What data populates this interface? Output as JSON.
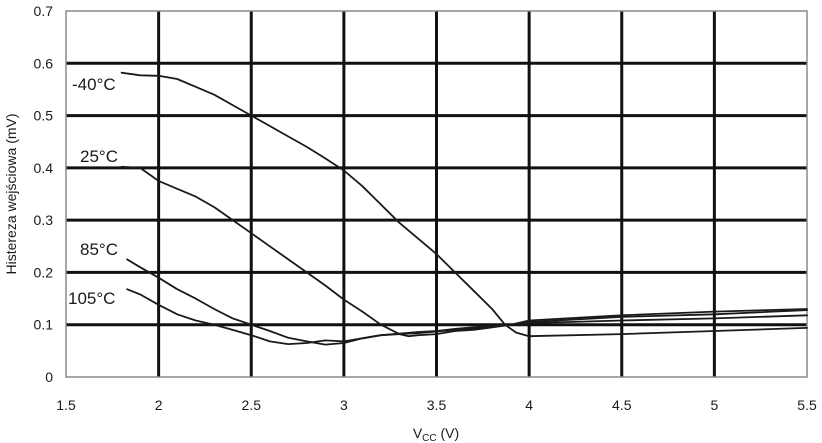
{
  "chart_data": {
    "type": "line",
    "xlabel": "V",
    "xlabel_sub": "CC",
    "xlabel_unit": " (V)",
    "ylabel": "Histereza wejściowa (mV)",
    "xlim": [
      1.5,
      5.5
    ],
    "ylim": [
      0,
      0.7
    ],
    "xticks": [
      "1.5",
      "2",
      "2.5",
      "3",
      "3.5",
      "4",
      "4.5",
      "5",
      "5.5"
    ],
    "yticks": [
      "0",
      "0.1",
      "0.2",
      "0.3",
      "0.4",
      "0.5",
      "0.6",
      "0.7"
    ],
    "grid": true,
    "series": [
      {
        "name": "-40°C",
        "points": [
          [
            1.8,
            0.582
          ],
          [
            1.9,
            0.577
          ],
          [
            2.0,
            0.576
          ],
          [
            2.1,
            0.57
          ],
          [
            2.2,
            0.555
          ],
          [
            2.3,
            0.54
          ],
          [
            2.4,
            0.52
          ],
          [
            2.5,
            0.5
          ],
          [
            2.6,
            0.48
          ],
          [
            2.7,
            0.46
          ],
          [
            2.8,
            0.44
          ],
          [
            2.9,
            0.418
          ],
          [
            3.0,
            0.395
          ],
          [
            3.1,
            0.365
          ],
          [
            3.2,
            0.33
          ],
          [
            3.3,
            0.295
          ],
          [
            3.4,
            0.265
          ],
          [
            3.5,
            0.235
          ],
          [
            3.6,
            0.2
          ],
          [
            3.7,
            0.165
          ],
          [
            3.8,
            0.13
          ],
          [
            3.87,
            0.1
          ],
          [
            3.93,
            0.085
          ],
          [
            4.0,
            0.078
          ],
          [
            4.5,
            0.082
          ],
          [
            5.0,
            0.088
          ],
          [
            5.5,
            0.094
          ]
        ]
      },
      {
        "name": "25°C",
        "points": [
          [
            1.8,
            0.402
          ],
          [
            1.9,
            0.4
          ],
          [
            2.0,
            0.375
          ],
          [
            2.1,
            0.36
          ],
          [
            2.2,
            0.345
          ],
          [
            2.3,
            0.325
          ],
          [
            2.4,
            0.3
          ],
          [
            2.5,
            0.275
          ],
          [
            2.6,
            0.25
          ],
          [
            2.7,
            0.225
          ],
          [
            2.8,
            0.2
          ],
          [
            2.9,
            0.175
          ],
          [
            3.0,
            0.148
          ],
          [
            3.1,
            0.125
          ],
          [
            3.2,
            0.1
          ],
          [
            3.3,
            0.082
          ],
          [
            3.35,
            0.078
          ],
          [
            3.4,
            0.08
          ],
          [
            3.5,
            0.082
          ],
          [
            3.6,
            0.088
          ],
          [
            3.7,
            0.09
          ],
          [
            3.8,
            0.095
          ],
          [
            3.9,
            0.1
          ],
          [
            4.0,
            0.103
          ],
          [
            4.5,
            0.108
          ],
          [
            5.0,
            0.112
          ],
          [
            5.5,
            0.118
          ]
        ]
      },
      {
        "name": "85°C",
        "points": [
          [
            1.83,
            0.225
          ],
          [
            1.9,
            0.21
          ],
          [
            2.0,
            0.19
          ],
          [
            2.1,
            0.168
          ],
          [
            2.2,
            0.15
          ],
          [
            2.3,
            0.13
          ],
          [
            2.4,
            0.112
          ],
          [
            2.5,
            0.1
          ],
          [
            2.6,
            0.088
          ],
          [
            2.7,
            0.075
          ],
          [
            2.8,
            0.068
          ],
          [
            2.9,
            0.062
          ],
          [
            3.0,
            0.065
          ],
          [
            3.1,
            0.074
          ],
          [
            3.2,
            0.08
          ],
          [
            3.3,
            0.082
          ],
          [
            3.4,
            0.084
          ],
          [
            3.5,
            0.087
          ],
          [
            3.6,
            0.09
          ],
          [
            3.7,
            0.093
          ],
          [
            3.8,
            0.096
          ],
          [
            3.9,
            0.1
          ],
          [
            4.0,
            0.105
          ],
          [
            4.5,
            0.115
          ],
          [
            5.0,
            0.12
          ],
          [
            5.5,
            0.128
          ]
        ]
      },
      {
        "name": "105°C",
        "points": [
          [
            1.83,
            0.168
          ],
          [
            1.9,
            0.158
          ],
          [
            2.0,
            0.138
          ],
          [
            2.1,
            0.12
          ],
          [
            2.2,
            0.108
          ],
          [
            2.3,
            0.1
          ],
          [
            2.4,
            0.09
          ],
          [
            2.5,
            0.08
          ],
          [
            2.6,
            0.068
          ],
          [
            2.7,
            0.063
          ],
          [
            2.8,
            0.065
          ],
          [
            2.9,
            0.07
          ],
          [
            3.0,
            0.068
          ],
          [
            3.1,
            0.074
          ],
          [
            3.2,
            0.08
          ],
          [
            3.3,
            0.083
          ],
          [
            3.4,
            0.086
          ],
          [
            3.5,
            0.088
          ],
          [
            3.6,
            0.092
          ],
          [
            3.7,
            0.095
          ],
          [
            3.8,
            0.098
          ],
          [
            3.9,
            0.1
          ],
          [
            4.0,
            0.108
          ],
          [
            4.5,
            0.118
          ],
          [
            5.0,
            0.125
          ],
          [
            5.5,
            0.13
          ]
        ]
      }
    ]
  }
}
